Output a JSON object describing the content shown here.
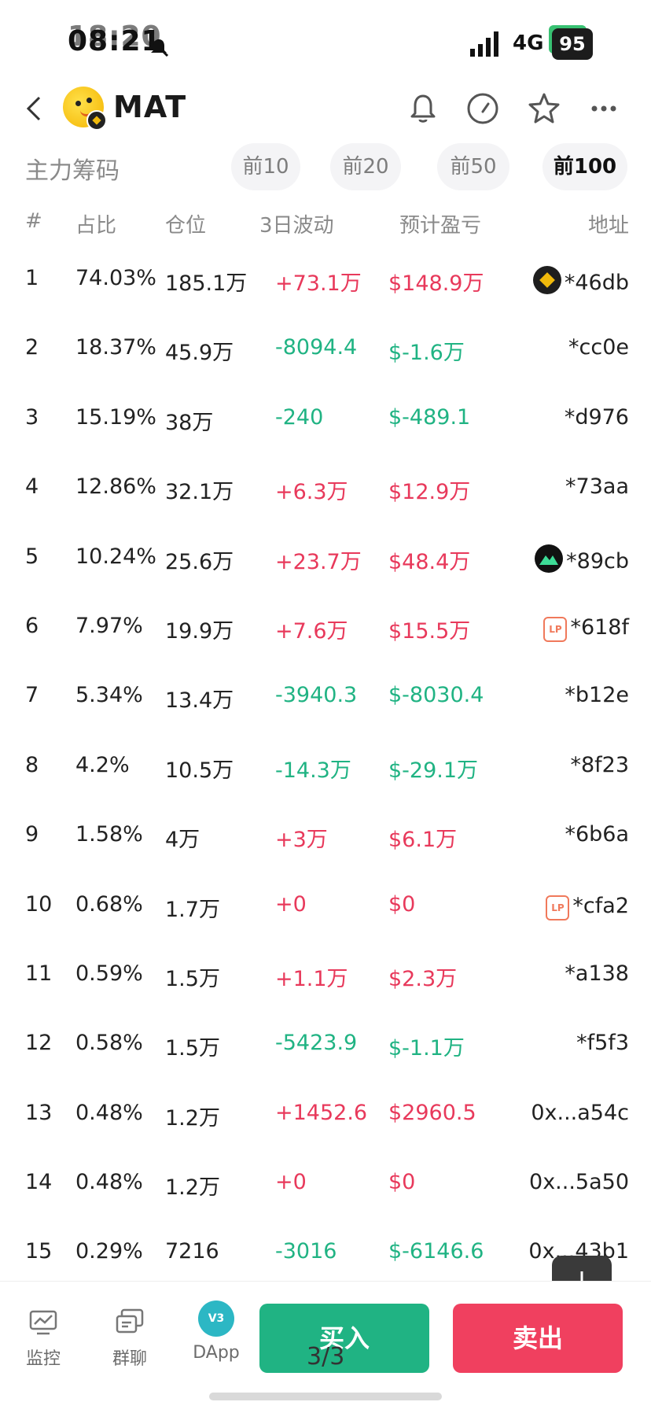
{
  "status_bar": {
    "time": "18:20",
    "time_overlay": "08:21",
    "network": "4G",
    "battery": "95"
  },
  "header": {
    "token_name": "MAT"
  },
  "range": {
    "title": "主力筹码",
    "tabs": [
      "前10",
      "前20",
      "前50",
      "前100"
    ],
    "active": "前100"
  },
  "table": {
    "headers": {
      "rank": "#",
      "share": "占比",
      "position": "仓位",
      "volatility": "3日波动",
      "pnl": "预计盈亏",
      "address": "地址"
    },
    "rows": [
      {
        "rank": "1",
        "share": "74.03%",
        "position": "185.1万",
        "volatility": "+73.1万",
        "pnl": "$148.9万",
        "address": "*46db",
        "trend": "up",
        "icon": "binance-icon"
      },
      {
        "rank": "2",
        "share": "18.37%",
        "position": "45.9万",
        "volatility": "-8094.4",
        "pnl": "$-1.6万",
        "address": "*cc0e",
        "trend": "down",
        "icon": ""
      },
      {
        "rank": "3",
        "share": "15.19%",
        "position": "38万",
        "volatility": "-240",
        "pnl": "$-489.1",
        "address": "*d976",
        "trend": "down",
        "icon": ""
      },
      {
        "rank": "4",
        "share": "12.86%",
        "position": "32.1万",
        "volatility": "+6.3万",
        "pnl": "$12.9万",
        "address": "*73aa",
        "trend": "up",
        "icon": ""
      },
      {
        "rank": "5",
        "share": "10.24%",
        "position": "25.6万",
        "volatility": "+23.7万",
        "pnl": "$48.4万",
        "address": "*89cb",
        "trend": "up",
        "icon": "mountain-icon"
      },
      {
        "rank": "6",
        "share": "7.97%",
        "position": "19.9万",
        "volatility": "+7.6万",
        "pnl": "$15.5万",
        "address": "*618f",
        "trend": "up",
        "icon": "lp-icon"
      },
      {
        "rank": "7",
        "share": "5.34%",
        "position": "13.4万",
        "volatility": "-3940.3",
        "pnl": "$-8030.4",
        "address": "*b12e",
        "trend": "down",
        "icon": ""
      },
      {
        "rank": "8",
        "share": "4.2%",
        "position": "10.5万",
        "volatility": "-14.3万",
        "pnl": "$-29.1万",
        "address": "*8f23",
        "trend": "down",
        "icon": ""
      },
      {
        "rank": "9",
        "share": "1.58%",
        "position": "4万",
        "volatility": "+3万",
        "pnl": "$6.1万",
        "address": "*6b6a",
        "trend": "up",
        "icon": ""
      },
      {
        "rank": "10",
        "share": "0.68%",
        "position": "1.7万",
        "volatility": "+0",
        "pnl": "$0",
        "address": "*cfa2",
        "trend": "up",
        "icon": "lp-icon"
      },
      {
        "rank": "11",
        "share": "0.59%",
        "position": "1.5万",
        "volatility": "+1.1万",
        "pnl": "$2.3万",
        "address": "*a138",
        "trend": "up",
        "icon": ""
      },
      {
        "rank": "12",
        "share": "0.58%",
        "position": "1.5万",
        "volatility": "-5423.9",
        "pnl": "$-1.1万",
        "address": "*f5f3",
        "trend": "down",
        "icon": ""
      },
      {
        "rank": "13",
        "share": "0.48%",
        "position": "1.2万",
        "volatility": "+1452.6",
        "pnl": "$2960.5",
        "address": "0x...a54c",
        "trend": "up",
        "icon": ""
      },
      {
        "rank": "14",
        "share": "0.48%",
        "position": "1.2万",
        "volatility": "+0",
        "pnl": "$0",
        "address": "0x...5a50",
        "trend": "up",
        "icon": ""
      },
      {
        "rank": "15",
        "share": "0.29%",
        "position": "7216",
        "volatility": "-3016",
        "pnl": "$-6146.6",
        "address": "0x...43b1",
        "trend": "down",
        "icon": ""
      }
    ]
  },
  "bottom_nav": {
    "monitor": "监控",
    "group_chat": "群聊",
    "dapp": "DApp",
    "dapp_badge": "V3",
    "buy": "买入",
    "sell": "卖出",
    "page_indicator": "3/3"
  },
  "colors": {
    "up": "#e8395b",
    "down": "#20b383",
    "buy": "#20b383",
    "sell": "#f0405f"
  }
}
